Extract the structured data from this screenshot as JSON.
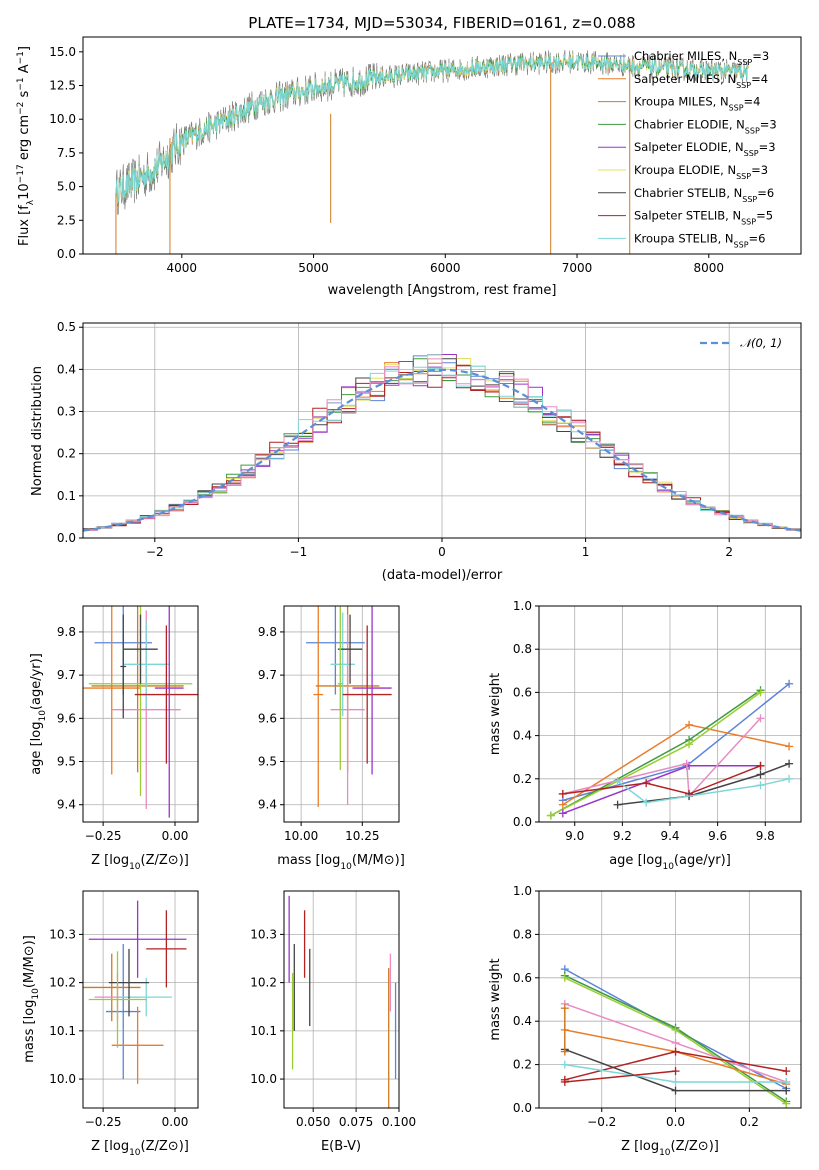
{
  "colors": {
    "Chabrier MILES": "#5b84d8",
    "Salpeter MILES": "#e87d2a",
    "Kroupa MILES": "#d07a20",
    "Chabrier ELODIE": "#3f9a3f",
    "Salpeter ELODIE": "#9b34c9",
    "Kroupa ELODIE": "#dfe064",
    "Chabrier STELIB": "#444444",
    "Salpeter STELIB": "#b22222",
    "Kroupa STELIB": "#7ed6d6",
    "extra_pink": "#e88bc4",
    "extra_green": "#9acd32",
    "data": "#808080",
    "normal": "#5b8fd8"
  },
  "chart_data": [
    {
      "id": "spectrum",
      "type": "line",
      "title": "PLATE=1734, MJD=53034, FIBERID=0161, z=0.088",
      "xlabel": "wavelength [Angstrom, rest frame]",
      "ylabel_parts": {
        "a": "Flux [f",
        "b": "λ",
        "c": "10",
        "d": "−17",
        "e": " erg cm",
        "f": "−2",
        "g": " s",
        "h": "−1",
        "i": " A",
        "j": "−1",
        "k": "]"
      },
      "xlim": [
        3250,
        8700
      ],
      "ylim": [
        0,
        16.1
      ],
      "xticks": [
        "4000",
        "5000",
        "6000",
        "7000",
        "8000"
      ],
      "xtick_values": [
        4000,
        5000,
        6000,
        7000,
        8000
      ],
      "yticks": [
        "0.0",
        "2.5",
        "5.0",
        "7.5",
        "10.0",
        "12.5",
        "15.0"
      ],
      "ytick_values": [
        0,
        2.5,
        5,
        7.5,
        10,
        12.5,
        15
      ],
      "legend_position": "top-right",
      "legend": [
        {
          "name": "Chabrier MILES",
          "n": "3"
        },
        {
          "name": "Salpeter MILES",
          "n": "4"
        },
        {
          "name": "Kroupa MILES",
          "n": "4"
        },
        {
          "name": "Chabrier ELODIE",
          "n": "3"
        },
        {
          "name": "Salpeter ELODIE",
          "n": "3"
        },
        {
          "name": "Kroupa ELODIE",
          "n": "3"
        },
        {
          "name": "Chabrier STELIB",
          "n": "6"
        },
        {
          "name": "Salpeter STELIB",
          "n": "5"
        },
        {
          "name": "Kroupa STELIB",
          "n": "6"
        }
      ],
      "continuum": [
        [
          3500,
          4.6
        ],
        [
          3800,
          6.3
        ],
        [
          4000,
          8.4
        ],
        [
          4300,
          9.8
        ],
        [
          4600,
          11.3
        ],
        [
          5000,
          12.3
        ],
        [
          5500,
          13.1
        ],
        [
          6000,
          13.6
        ],
        [
          6500,
          14.1
        ],
        [
          7000,
          14.3
        ],
        [
          7500,
          13.9
        ],
        [
          8000,
          13.6
        ],
        [
          8300,
          13.5
        ]
      ]
    },
    {
      "id": "residuals",
      "type": "line",
      "xlabel": "(data-model)/error",
      "ylabel": "Normed distribution",
      "xlim": [
        -2.5,
        2.5
      ],
      "ylim": [
        0,
        0.51
      ],
      "xticks": [
        "−2",
        "−1",
        "0",
        "1",
        "2"
      ],
      "xtick_values": [
        -2,
        -1,
        0,
        1,
        2
      ],
      "yticks": [
        "0.0",
        "0.1",
        "0.2",
        "0.3",
        "0.4",
        "0.5"
      ],
      "ytick_values": [
        0,
        0.1,
        0.2,
        0.3,
        0.4,
        0.5
      ],
      "legend": [
        {
          "name": "𝒩(0, 1)"
        }
      ],
      "legend_position": "top-right",
      "bin_width": 0.1
    },
    {
      "id": "age_vs_Z",
      "type": "scatter",
      "xlabel_parts": {
        "a": "Z [log",
        "b": "10",
        "c": "(Z/Z",
        "d": "⊙",
        "e": ")]"
      },
      "ylabel_parts": {
        "a": "age  [log",
        "b": "10",
        "c": "(age/yr)]"
      },
      "xlim": [
        -0.32,
        0.08
      ],
      "ylim": [
        9.36,
        9.86
      ],
      "xticks": [
        "−0.25",
        "0.00"
      ],
      "xtick_values": [
        -0.25,
        0.0
      ],
      "yticks": [
        "9.4",
        "9.5",
        "9.6",
        "9.7",
        "9.8"
      ],
      "ytick_values": [
        9.4,
        9.5,
        9.6,
        9.7,
        9.8
      ],
      "points": [
        {
          "c": "Chabrier MILES",
          "x": -0.18,
          "y": 9.775,
          "xe": 0.1,
          "ye": 0.12
        },
        {
          "c": "Salpeter MILES",
          "x": -0.22,
          "y": 9.67,
          "xe": 0.1,
          "ye": 0.2
        },
        {
          "c": "Kroupa MILES",
          "x": -0.13,
          "y": 9.675,
          "xe": 0.16,
          "ye": 0.2
        },
        {
          "c": "extra_pink",
          "x": -0.1,
          "y": 9.62,
          "xe": 0.12,
          "ye": 0.23
        },
        {
          "c": "extra_green",
          "x": -0.12,
          "y": 9.68,
          "xe": 0.18,
          "ye": 0.26
        },
        {
          "c": "Kroupa STELIB",
          "x": -0.1,
          "y": 9.725,
          "xe": 0.08,
          "ye": 0.1
        },
        {
          "c": "Chabrier STELIB",
          "x": -0.12,
          "y": 9.76,
          "xe": 0.06,
          "ye": 0.08
        },
        {
          "c": "Salpeter STELIB",
          "x": -0.03,
          "y": 9.655,
          "xe": 0.11,
          "ye": 0.16
        },
        {
          "c": "Salpeter ELODIE",
          "x": -0.02,
          "y": 9.67,
          "xe": 0.05,
          "ye": 0.3
        },
        {
          "c": "Chabrier STELIB",
          "x": -0.18,
          "y": 9.72,
          "xe": 0.01,
          "ye": 0.12
        }
      ]
    },
    {
      "id": "age_vs_mass",
      "type": "scatter",
      "xlabel_parts": {
        "a": "mass [log",
        "b": "10",
        "c": "(M/M",
        "d": "⊙",
        "e": ")]"
      },
      "xlim": [
        9.93,
        10.4
      ],
      "ylim": [
        9.36,
        9.86
      ],
      "xticks": [
        "10.00",
        "10.25"
      ],
      "xtick_values": [
        10.0,
        10.25
      ],
      "yticks": [
        "9.4",
        "9.5",
        "9.6",
        "9.7",
        "9.8"
      ],
      "ytick_values": [
        9.4,
        9.5,
        9.6,
        9.7,
        9.8
      ],
      "points": [
        {
          "c": "Chabrier MILES",
          "x": 10.14,
          "y": 9.775,
          "xe": 0.12,
          "ye": 0.12
        },
        {
          "c": "Salpeter MILES",
          "x": 10.07,
          "y": 9.655,
          "xe": 0.02,
          "ye": 0.26
        },
        {
          "c": "Kroupa MILES",
          "x": 10.19,
          "y": 9.675,
          "xe": 0.13,
          "ye": 0.2
        },
        {
          "c": "extra_pink",
          "x": 10.19,
          "y": 9.62,
          "xe": 0.07,
          "ye": 0.22
        },
        {
          "c": "Kroupa STELIB",
          "x": 10.17,
          "y": 9.725,
          "xe": 0.05,
          "ye": 0.12
        },
        {
          "c": "Chabrier STELIB",
          "x": 10.2,
          "y": 9.76,
          "xe": 0.05,
          "ye": 0.08
        },
        {
          "c": "Salpeter STELIB",
          "x": 10.27,
          "y": 9.655,
          "xe": 0.1,
          "ye": 0.16
        },
        {
          "c": "Salpeter ELODIE",
          "x": 10.29,
          "y": 9.67,
          "xe": 0.08,
          "ye": 0.2
        },
        {
          "c": "extra_green",
          "x": 10.16,
          "y": 9.68,
          "xe": 0.01,
          "ye": 0.2
        }
      ]
    },
    {
      "id": "weight_vs_age",
      "type": "line",
      "xlabel_parts": {
        "a": "age  [log",
        "b": "10",
        "c": "(age/yr)]"
      },
      "ylabel": "mass weight",
      "xlim": [
        8.85,
        9.95
      ],
      "ylim": [
        0,
        1.0
      ],
      "xticks": [
        "9.0",
        "9.2",
        "9.4",
        "9.6",
        "9.8"
      ],
      "xtick_values": [
        9.0,
        9.2,
        9.4,
        9.6,
        9.8
      ],
      "yticks": [
        "0.0",
        "0.2",
        "0.4",
        "0.6",
        "0.8",
        "1.0"
      ],
      "ytick_values": [
        0,
        0.2,
        0.4,
        0.6,
        0.8,
        1.0
      ],
      "series": [
        {
          "c": "Chabrier MILES",
          "x": [
            8.95,
            9.47,
            9.9
          ],
          "y": [
            0.1,
            0.26,
            0.64
          ]
        },
        {
          "c": "Salpeter MILES",
          "x": [
            8.95,
            9.48,
            9.9
          ],
          "y": [
            0.08,
            0.45,
            0.35
          ]
        },
        {
          "c": "Chabrier ELODIE",
          "x": [
            8.9,
            9.48,
            9.78
          ],
          "y": [
            0.03,
            0.38,
            0.61
          ]
        },
        {
          "c": "extra_green",
          "x": [
            8.9,
            9.48,
            9.78
          ],
          "y": [
            0.03,
            0.36,
            0.6
          ]
        },
        {
          "c": "Salpeter ELODIE",
          "x": [
            8.95,
            9.48,
            9.78
          ],
          "y": [
            0.04,
            0.26,
            0.26
          ]
        },
        {
          "c": "extra_pink",
          "x": [
            8.95,
            9.47,
            9.48,
            9.78
          ],
          "y": [
            0.13,
            0.27,
            0.12,
            0.48
          ]
        },
        {
          "c": "Salpeter STELIB",
          "x": [
            8.95,
            9.3,
            9.48,
            9.78
          ],
          "y": [
            0.13,
            0.18,
            0.13,
            0.26
          ]
        },
        {
          "c": "Chabrier STELIB",
          "x": [
            9.18,
            9.48,
            9.78,
            9.9
          ],
          "y": [
            0.08,
            0.12,
            0.22,
            0.27
          ]
        },
        {
          "c": "Kroupa STELIB",
          "x": [
            9.18,
            9.3,
            9.78,
            9.9
          ],
          "y": [
            0.19,
            0.09,
            0.17,
            0.2
          ]
        }
      ]
    },
    {
      "id": "mass_vs_Z",
      "type": "scatter",
      "xlabel_parts": {
        "a": "Z [log",
        "b": "10",
        "c": "(Z/Z",
        "d": "⊙",
        "e": ")]"
      },
      "ylabel_parts": {
        "a": "mass [log",
        "b": "10",
        "c": "(M/M",
        "d": "⊙",
        "e": ")]"
      },
      "xlim": [
        -0.32,
        0.08
      ],
      "ylim": [
        9.94,
        10.39
      ],
      "xticks": [
        "−0.25",
        "0.00"
      ],
      "xtick_values": [
        -0.25,
        0.0
      ],
      "yticks": [
        "10.0",
        "10.1",
        "10.2",
        "10.3"
      ],
      "ytick_values": [
        10.0,
        10.1,
        10.2,
        10.3
      ],
      "points": [
        {
          "c": "Chabrier MILES",
          "x": -0.18,
          "y": 10.14,
          "xe": 0.06,
          "ye": 0.14
        },
        {
          "c": "Salpeter MILES",
          "x": -0.13,
          "y": 10.07,
          "xe": 0.09,
          "ye": 0.08
        },
        {
          "c": "Kroupa MILES",
          "x": -0.22,
          "y": 10.19,
          "xe": 0.1,
          "ye": 0.07
        },
        {
          "c": "extra_pink",
          "x": -0.2,
          "y": 10.17,
          "xe": 0.08,
          "ye": 0.05
        },
        {
          "c": "Salpeter ELODIE",
          "x": -0.13,
          "y": 10.29,
          "xe": 0.17,
          "ye": 0.08
        },
        {
          "c": "Salpeter STELIB",
          "x": -0.03,
          "y": 10.27,
          "xe": 0.07,
          "ye": 0.08
        },
        {
          "c": "Kroupa STELIB",
          "x": -0.1,
          "y": 10.17,
          "xe": 0.09,
          "ye": 0.04
        },
        {
          "c": "Chabrier STELIB",
          "x": -0.16,
          "y": 10.2,
          "xe": 0.07,
          "ye": 0.07
        },
        {
          "c": "extra_green",
          "x": -0.2,
          "y": 10.165,
          "xe": 0.1,
          "ye": 0.1
        }
      ]
    },
    {
      "id": "mass_vs_ebv",
      "type": "scatter",
      "xlabel": "E(B-V)",
      "xlim": [
        0.033,
        0.1
      ],
      "ylim": [
        9.94,
        10.39
      ],
      "xticks": [
        "0.050",
        "0.075",
        "0.100"
      ],
      "xtick_values": [
        0.05,
        0.075,
        0.1
      ],
      "yticks": [
        "10.0",
        "10.1",
        "10.2",
        "10.3"
      ],
      "ytick_values": [
        10.0,
        10.1,
        10.2,
        10.3
      ],
      "points": [
        {
          "c": "Salpeter ELODIE",
          "x": 0.036,
          "y": 10.29,
          "xe": 0,
          "ye": 0.09
        },
        {
          "c": "extra_green",
          "x": 0.038,
          "y": 10.12,
          "xe": 0,
          "ye": 0.1
        },
        {
          "c": "Chabrier STELIB",
          "x": 0.039,
          "y": 10.19,
          "xe": 0,
          "ye": 0.09
        },
        {
          "c": "Salpeter STELIB",
          "x": 0.045,
          "y": 10.28,
          "xe": 0,
          "ye": 0.07
        },
        {
          "c": "Chabrier STELIB",
          "x": 0.048,
          "y": 10.19,
          "xe": 0,
          "ye": 0.08
        },
        {
          "c": "extra_pink",
          "x": 0.095,
          "y": 10.2,
          "xe": 0,
          "ye": 0.06
        },
        {
          "c": "Kroupa MILES",
          "x": 0.094,
          "y": 10.07,
          "xe": 0,
          "ye": 0.16
        },
        {
          "c": "Chabrier MILES",
          "x": 0.098,
          "y": 10.1,
          "xe": 0,
          "ye": 0.1
        }
      ]
    },
    {
      "id": "weight_vs_Z",
      "type": "line",
      "xlabel_parts": {
        "a": "Z [log",
        "b": "10",
        "c": "(Z/Z",
        "d": "⊙",
        "e": ")]"
      },
      "ylabel": "mass weight",
      "xlim": [
        -0.37,
        0.34
      ],
      "ylim": [
        0,
        1.0
      ],
      "xticks": [
        "−0.2",
        "0.0",
        "0.2"
      ],
      "xtick_values": [
        -0.2,
        0.0,
        0.2
      ],
      "yticks": [
        "0.0",
        "0.2",
        "0.4",
        "0.6",
        "0.8",
        "1.0"
      ],
      "ytick_values": [
        0,
        0.2,
        0.4,
        0.6,
        0.8,
        1.0
      ],
      "series": [
        {
          "c": "Chabrier MILES",
          "x": [
            -0.3,
            0.0,
            0.3
          ],
          "y": [
            0.64,
            0.36,
            0.09
          ]
        },
        {
          "c": "Chabrier ELODIE",
          "x": [
            -0.3,
            0.0,
            0.3
          ],
          "y": [
            0.61,
            0.37,
            0.03
          ]
        },
        {
          "c": "extra_green",
          "x": [
            -0.3,
            0.0,
            0.3
          ],
          "y": [
            0.6,
            0.36,
            0.02
          ]
        },
        {
          "c": "extra_pink",
          "x": [
            -0.3,
            0.0,
            0.3
          ],
          "y": [
            0.48,
            0.3,
            0.12
          ]
        },
        {
          "c": "Salpeter MILES",
          "x": [
            -0.3,
            0.0,
            0.3
          ],
          "y": [
            0.36,
            0.26,
            0.11
          ]
        },
        {
          "c": "Salpeter STELIB",
          "x": [
            -0.3,
            0.0,
            0.3
          ],
          "y": [
            0.13,
            0.26,
            0.17
          ]
        },
        {
          "c": "Chabrier STELIB",
          "x": [
            -0.3,
            0.0,
            0.3
          ],
          "y": [
            0.27,
            0.08,
            0.08
          ]
        },
        {
          "c": "Kroupa STELIB",
          "x": [
            -0.3,
            0.0,
            0.3
          ],
          "y": [
            0.2,
            0.12,
            0.12
          ]
        },
        {
          "c": "Salpeter STELIB",
          "x": [
            -0.3,
            0.0
          ],
          "y": [
            0.12,
            0.17
          ]
        },
        {
          "c": "Kroupa MILES",
          "x": [
            -0.3,
            -0.3
          ],
          "y": [
            0.46,
            0.26
          ]
        }
      ]
    }
  ]
}
